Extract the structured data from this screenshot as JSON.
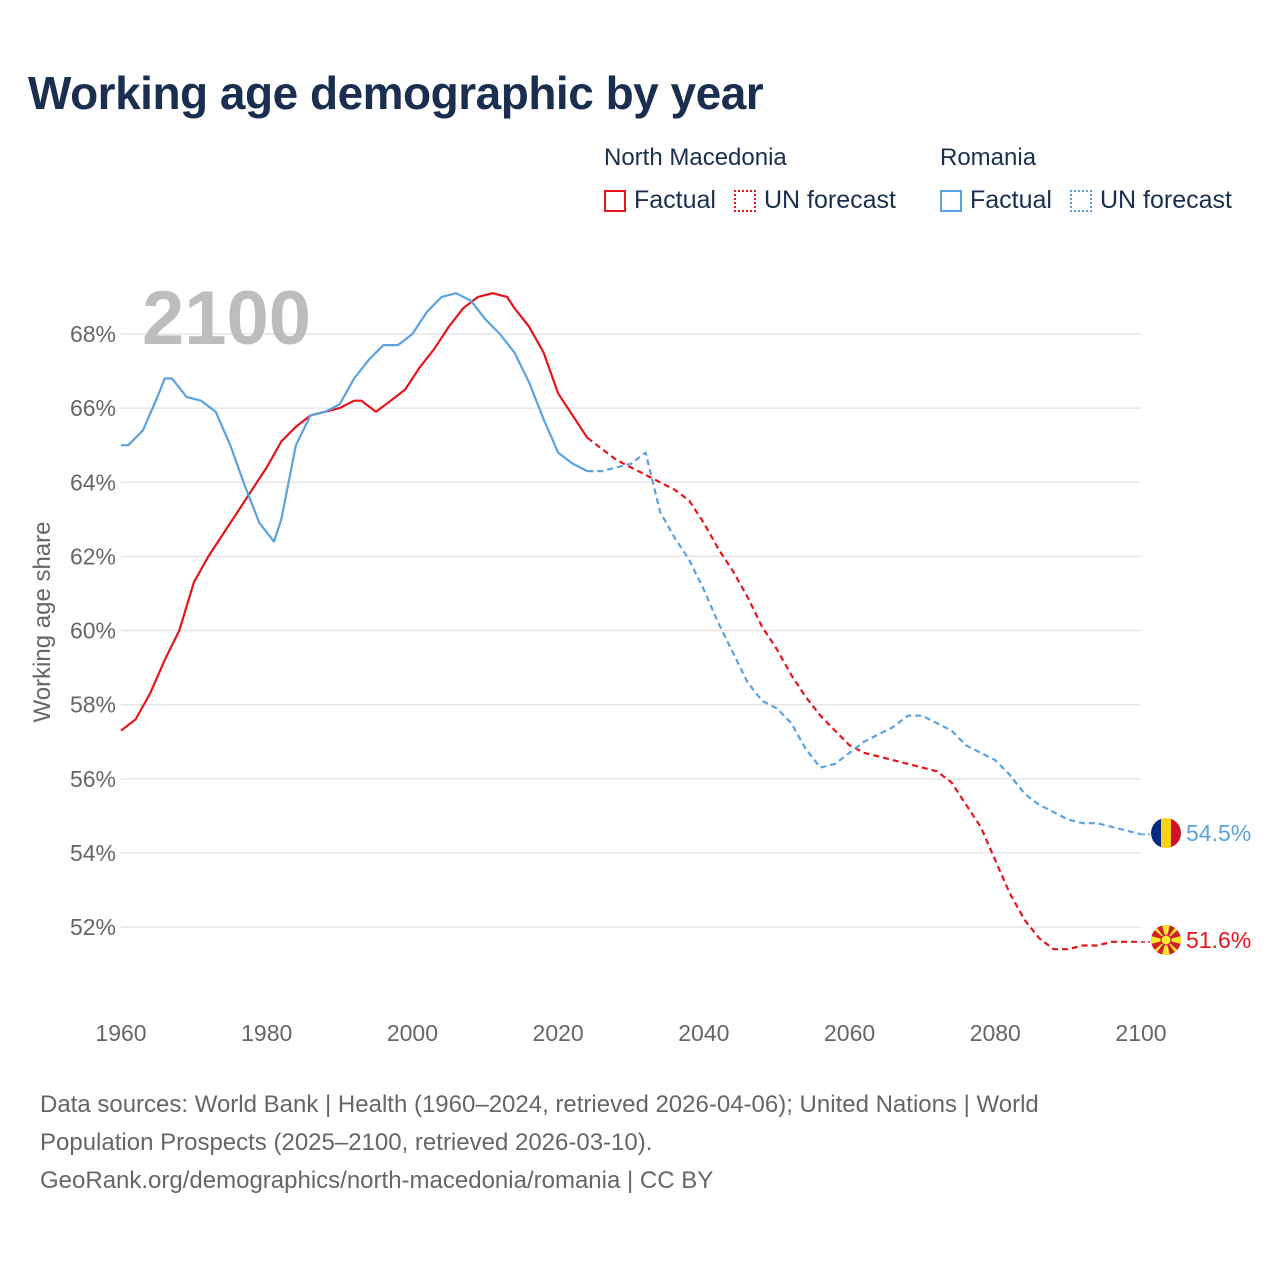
{
  "title": "Working age demographic by year",
  "legend": {
    "groups": [
      {
        "country": "North Macedonia",
        "color": "#e8141c",
        "factual_label": "Factual",
        "forecast_label": "UN forecast"
      },
      {
        "country": "Romania",
        "color": "#5aa2e0",
        "factual_label": "Factual",
        "forecast_label": "UN forecast"
      }
    ]
  },
  "year_overlay": "2100",
  "footer": {
    "line1": "Data sources: World Bank | Health (1960–2024, retrieved 2026-04-06); United Nations | World",
    "line2": "Population Prospects (2025–2100, retrieved 2026-03-10).",
    "line3": "GeoRank.org/demographics/north-macedonia/romania | CC BY"
  },
  "chart_data": {
    "type": "line",
    "title": "Working age demographic by year",
    "xlabel": "",
    "ylabel": "Working age share",
    "xlim": [
      1960,
      2100
    ],
    "ylim": [
      50.3,
      69.5
    ],
    "x_ticks": [
      1960,
      1980,
      2000,
      2020,
      2040,
      2060,
      2080,
      2100
    ],
    "y_ticks": [
      52,
      54,
      56,
      58,
      60,
      62,
      64,
      66,
      68
    ],
    "y_tick_labels": [
      "52%",
      "54%",
      "56%",
      "58%",
      "60%",
      "62%",
      "64%",
      "66%",
      "68%"
    ],
    "grid": true,
    "factual_end_year": 2024,
    "series": [
      {
        "name": "North Macedonia",
        "color": "#e8141c",
        "end_label": "51.6%",
        "flag": "north-macedonia",
        "points": [
          [
            1960,
            57.3
          ],
          [
            1962,
            57.6
          ],
          [
            1964,
            58.3
          ],
          [
            1966,
            59.2
          ],
          [
            1968,
            60.0
          ],
          [
            1970,
            61.3
          ],
          [
            1972,
            62.0
          ],
          [
            1974,
            62.6
          ],
          [
            1976,
            63.2
          ],
          [
            1978,
            63.8
          ],
          [
            1980,
            64.4
          ],
          [
            1982,
            65.1
          ],
          [
            1984,
            65.5
          ],
          [
            1986,
            65.8
          ],
          [
            1988,
            65.9
          ],
          [
            1990,
            66.0
          ],
          [
            1992,
            66.2
          ],
          [
            1993,
            66.2
          ],
          [
            1995,
            65.9
          ],
          [
            1997,
            66.2
          ],
          [
            1999,
            66.5
          ],
          [
            2001,
            67.1
          ],
          [
            2003,
            67.6
          ],
          [
            2005,
            68.2
          ],
          [
            2007,
            68.7
          ],
          [
            2009,
            69.0
          ],
          [
            2011,
            69.1
          ],
          [
            2013,
            69.0
          ],
          [
            2014,
            68.7
          ],
          [
            2016,
            68.2
          ],
          [
            2018,
            67.5
          ],
          [
            2020,
            66.4
          ],
          [
            2022,
            65.8
          ],
          [
            2024,
            65.2
          ],
          [
            2026,
            64.9
          ],
          [
            2028,
            64.6
          ],
          [
            2030,
            64.4
          ],
          [
            2032,
            64.2
          ],
          [
            2034,
            64.0
          ],
          [
            2036,
            63.8
          ],
          [
            2038,
            63.5
          ],
          [
            2040,
            62.9
          ],
          [
            2042,
            62.2
          ],
          [
            2044,
            61.6
          ],
          [
            2046,
            60.9
          ],
          [
            2048,
            60.1
          ],
          [
            2050,
            59.5
          ],
          [
            2052,
            58.8
          ],
          [
            2054,
            58.2
          ],
          [
            2056,
            57.7
          ],
          [
            2058,
            57.3
          ],
          [
            2060,
            56.9
          ],
          [
            2062,
            56.7
          ],
          [
            2064,
            56.6
          ],
          [
            2066,
            56.5
          ],
          [
            2068,
            56.4
          ],
          [
            2070,
            56.3
          ],
          [
            2072,
            56.2
          ],
          [
            2074,
            55.9
          ],
          [
            2076,
            55.3
          ],
          [
            2078,
            54.7
          ],
          [
            2080,
            53.8
          ],
          [
            2082,
            52.9
          ],
          [
            2084,
            52.2
          ],
          [
            2086,
            51.7
          ],
          [
            2088,
            51.4
          ],
          [
            2090,
            51.4
          ],
          [
            2092,
            51.5
          ],
          [
            2094,
            51.5
          ],
          [
            2096,
            51.6
          ],
          [
            2098,
            51.6
          ],
          [
            2100,
            51.6
          ]
        ]
      },
      {
        "name": "Romania",
        "color": "#5aa2e0",
        "end_label": "54.5%",
        "flag": "romania",
        "points": [
          [
            1960,
            65.0
          ],
          [
            1961,
            65.0
          ],
          [
            1963,
            65.4
          ],
          [
            1965,
            66.3
          ],
          [
            1966,
            66.8
          ],
          [
            1967,
            66.8
          ],
          [
            1969,
            66.3
          ],
          [
            1971,
            66.2
          ],
          [
            1973,
            65.9
          ],
          [
            1975,
            65.0
          ],
          [
            1977,
            63.9
          ],
          [
            1979,
            62.9
          ],
          [
            1981,
            62.4
          ],
          [
            1982,
            63.0
          ],
          [
            1984,
            65.0
          ],
          [
            1986,
            65.8
          ],
          [
            1988,
            65.9
          ],
          [
            1990,
            66.1
          ],
          [
            1992,
            66.8
          ],
          [
            1994,
            67.3
          ],
          [
            1996,
            67.7
          ],
          [
            1998,
            67.7
          ],
          [
            2000,
            68.0
          ],
          [
            2002,
            68.6
          ],
          [
            2004,
            69.0
          ],
          [
            2006,
            69.1
          ],
          [
            2008,
            68.9
          ],
          [
            2010,
            68.4
          ],
          [
            2012,
            68.0
          ],
          [
            2014,
            67.5
          ],
          [
            2016,
            66.7
          ],
          [
            2018,
            65.7
          ],
          [
            2020,
            64.8
          ],
          [
            2022,
            64.5
          ],
          [
            2024,
            64.3
          ],
          [
            2026,
            64.3
          ],
          [
            2028,
            64.4
          ],
          [
            2030,
            64.5
          ],
          [
            2032,
            64.8
          ],
          [
            2034,
            63.2
          ],
          [
            2036,
            62.5
          ],
          [
            2038,
            61.9
          ],
          [
            2040,
            61.1
          ],
          [
            2042,
            60.2
          ],
          [
            2044,
            59.4
          ],
          [
            2046,
            58.6
          ],
          [
            2048,
            58.1
          ],
          [
            2050,
            57.9
          ],
          [
            2052,
            57.5
          ],
          [
            2054,
            56.8
          ],
          [
            2056,
            56.3
          ],
          [
            2058,
            56.4
          ],
          [
            2060,
            56.7
          ],
          [
            2062,
            57.0
          ],
          [
            2064,
            57.2
          ],
          [
            2066,
            57.4
          ],
          [
            2068,
            57.7
          ],
          [
            2070,
            57.7
          ],
          [
            2072,
            57.5
          ],
          [
            2074,
            57.3
          ],
          [
            2076,
            56.9
          ],
          [
            2078,
            56.7
          ],
          [
            2080,
            56.5
          ],
          [
            2082,
            56.1
          ],
          [
            2084,
            55.6
          ],
          [
            2086,
            55.3
          ],
          [
            2088,
            55.1
          ],
          [
            2090,
            54.9
          ],
          [
            2092,
            54.8
          ],
          [
            2094,
            54.8
          ],
          [
            2096,
            54.7
          ],
          [
            2098,
            54.6
          ],
          [
            2100,
            54.5
          ]
        ]
      }
    ]
  }
}
